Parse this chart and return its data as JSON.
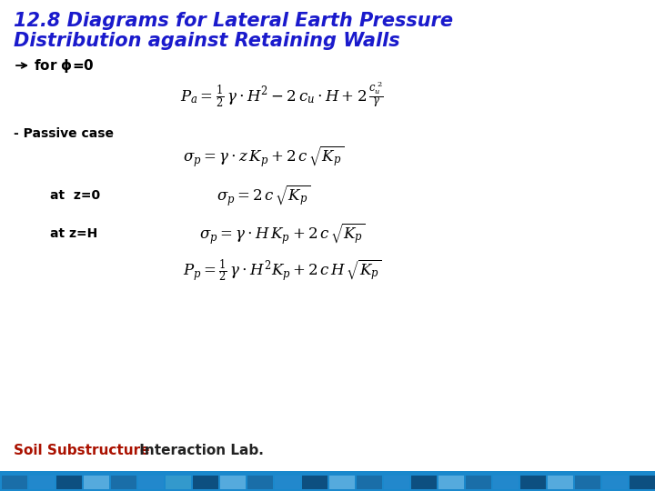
{
  "title_line1": "12.8 Diagrams for Lateral Earth Pressure",
  "title_line2": "Distribution against Retaining Walls",
  "title_color": "#1a1acc",
  "bg_color": "#ffffff",
  "passive_label": "- Passive case",
  "at_z0_label": "at  z=0",
  "at_zH_label": "at z=H",
  "footer_soil": "Soil Substructure",
  "footer_rest": " Interaction Lab.",
  "footer_soil_color": "#aa1100",
  "footer_rest_color": "#222222",
  "bottom_bar_colors": [
    "#1a6ea8",
    "#2288cc",
    "#0d4f80",
    "#55aadd",
    "#1a6ea8",
    "#2288cc",
    "#3399cc",
    "#0d4f80",
    "#55aadd",
    "#1a6ea8",
    "#2288cc",
    "#0d4f80",
    "#55aadd",
    "#1a6ea8",
    "#2288cc",
    "#0d4f80",
    "#55aadd",
    "#1a6ea8",
    "#2288cc",
    "#0d4f80",
    "#55aadd",
    "#1a6ea8",
    "#2288cc",
    "#0d4f80"
  ],
  "bottom_bar_bg": "#1a88cc",
  "formula_color": "#000000",
  "label_color": "#000000",
  "formula_fontsize": 11,
  "label_fontsize": 10,
  "title_fontsize": 15
}
